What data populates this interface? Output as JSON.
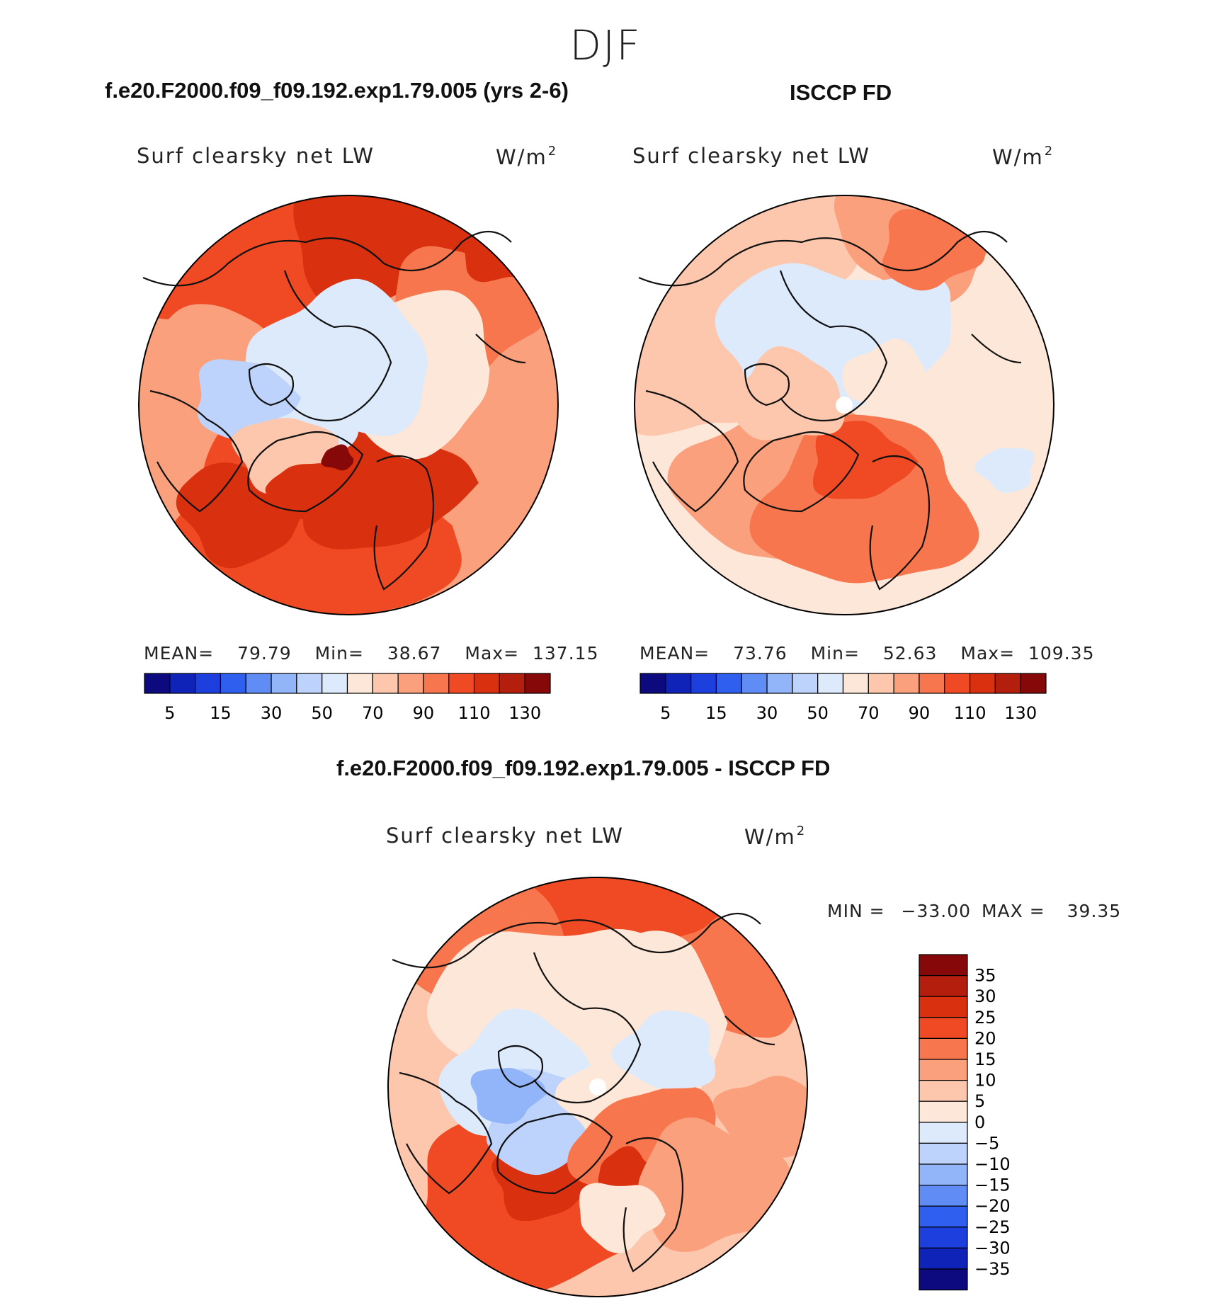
{
  "figure": {
    "season": "DJF",
    "variable": "Surf clearsky net LW",
    "units_base": "W/m",
    "units_exp": "2"
  },
  "panels": {
    "model": {
      "title": "f.e20.F2000.f09_f09.192.exp1.79.005 (yrs 2-6)",
      "mean_label": "MEAN=",
      "mean": "79.79",
      "min_label": "Min=",
      "min": "38.67",
      "max_label": "Max=",
      "max": "137.15"
    },
    "obs": {
      "title": "ISCCP FD",
      "mean_label": "MEAN=",
      "mean": "73.76",
      "min_label": "Min=",
      "min": "52.63",
      "max_label": "Max=",
      "max": "109.35"
    },
    "diff": {
      "title": "f.e20.F2000.f09_f09.192.exp1.79.005 - ISCCP FD",
      "min_label": "MIN =",
      "min": "−33.00",
      "max_label": "MAX =",
      "max": "39.35"
    }
  },
  "chart_data": [
    {
      "type": "heatmap",
      "projection": "north-polar-stereographic",
      "title": "f.e20.F2000.f09_f09.192.exp1.79.005 (yrs 2-6)",
      "variable": "Surf clearsky net LW",
      "units": "W/m2",
      "colorbar_levels": [
        5,
        10,
        15,
        20,
        30,
        40,
        50,
        60,
        70,
        80,
        90,
        100,
        110,
        120,
        130
      ],
      "colorbar_tick_labels": [
        "5",
        "15",
        "30",
        "50",
        "70",
        "90",
        "110",
        "130"
      ],
      "colors": [
        "#0c0a7e",
        "#0f23b8",
        "#1c3fde",
        "#2f5fef",
        "#5f8cf5",
        "#92b4f8",
        "#bdd3fb",
        "#dceafc",
        "#fde7d8",
        "#fcc7ad",
        "#faa07d",
        "#f7764e",
        "#ef4a23",
        "#d9300f",
        "#b41e0c",
        "#870808"
      ],
      "mean": 79.79,
      "min": 38.67,
      "max": 137.15
    },
    {
      "type": "heatmap",
      "projection": "north-polar-stereographic",
      "title": "ISCCP FD",
      "variable": "Surf clearsky net LW",
      "units": "W/m2",
      "colorbar_levels": [
        5,
        10,
        15,
        20,
        30,
        40,
        50,
        60,
        70,
        80,
        90,
        100,
        110,
        120,
        130
      ],
      "colorbar_tick_labels": [
        "5",
        "15",
        "30",
        "50",
        "70",
        "90",
        "110",
        "130"
      ],
      "colors": [
        "#0c0a7e",
        "#0f23b8",
        "#1c3fde",
        "#2f5fef",
        "#5f8cf5",
        "#92b4f8",
        "#bdd3fb",
        "#dceafc",
        "#fde7d8",
        "#fcc7ad",
        "#faa07d",
        "#f7764e",
        "#ef4a23",
        "#d9300f",
        "#b41e0c",
        "#870808"
      ],
      "mean": 73.76,
      "min": 52.63,
      "max": 109.35
    },
    {
      "type": "heatmap",
      "projection": "north-polar-stereographic",
      "title": "f.e20.F2000.f09_f09.192.exp1.79.005 - ISCCP FD",
      "variable": "Surf clearsky net LW",
      "units": "W/m2",
      "colorbar_levels": [
        35,
        30,
        25,
        20,
        15,
        10,
        5,
        0,
        -5,
        -10,
        -15,
        -20,
        -25,
        -30,
        -35
      ],
      "colorbar_tick_labels": [
        "35",
        "30",
        "25",
        "20",
        "15",
        "10",
        "5",
        "0",
        "−5",
        "−10",
        "−15",
        "−20",
        "−25",
        "−30",
        "−35"
      ],
      "colors": [
        "#870808",
        "#b41e0c",
        "#d9300f",
        "#ef4a23",
        "#f7764e",
        "#faa07d",
        "#fcc7ad",
        "#fde7d8",
        "#dceafc",
        "#bdd3fb",
        "#92b4f8",
        "#5f8cf5",
        "#2f5fef",
        "#1c3fde",
        "#0f23b8",
        "#0c0a7e"
      ],
      "min": -33.0,
      "max": 39.35
    }
  ]
}
